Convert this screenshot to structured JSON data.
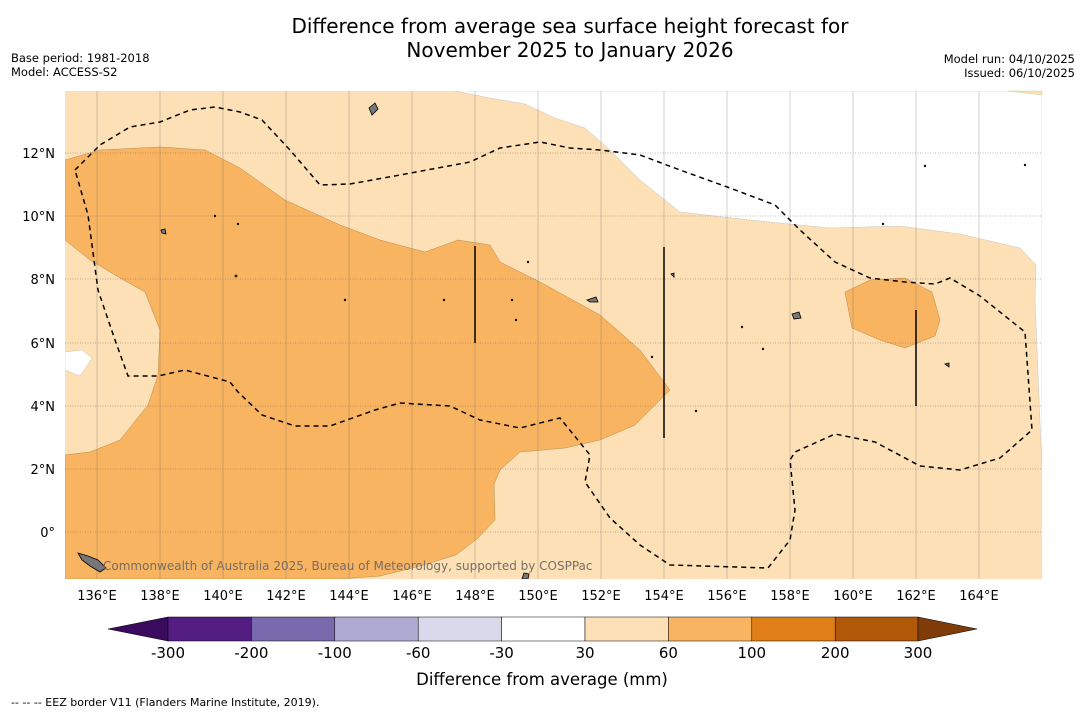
{
  "title": {
    "line1": "Difference from average sea surface height forecast for",
    "line2": "November 2025 to January 2026"
  },
  "meta_left": {
    "base_period": "Base period: 1981-2018",
    "model": "Model: ACCESS-S2"
  },
  "meta_right": {
    "model_run": "Model run: 04/10/2025",
    "issued": "Issued: 06/10/2025"
  },
  "map": {
    "lon_range": [
      135,
      166
    ],
    "lat_range": [
      -1.5,
      14
    ],
    "lon_ticks": [
      "136°E",
      "138°E",
      "140°E",
      "142°E",
      "144°E",
      "146°E",
      "148°E",
      "150°E",
      "152°E",
      "154°E",
      "156°E",
      "158°E",
      "160°E",
      "162°E",
      "164°E"
    ],
    "lat_ticks": [
      "12°N",
      "10°N",
      "8°N",
      "6°N",
      "4°N",
      "2°N",
      "0°"
    ],
    "copyright": "Commonwealth of Australia 2025, Bureau of Meteorology, supported by COSPPac"
  },
  "colorbar": {
    "ticks": [
      "-300",
      "-200",
      "-100",
      "-60",
      "-30",
      "30",
      "60",
      "100",
      "200",
      "300"
    ],
    "colors": [
      "#541d82",
      "#7a6aad",
      "#aeaad2",
      "#d9d9ec",
      "#ffffff",
      "#fde0b6",
      "#f9b462",
      "#e07f18",
      "#b15908"
    ],
    "low_extend_color": "#3a0a5e",
    "high_extend_color": "#7f3c08",
    "label": "Difference from average (mm)"
  },
  "footnote": "--  --  -- EEZ border V11 (Flanders Marine Institute, 2019)."
}
